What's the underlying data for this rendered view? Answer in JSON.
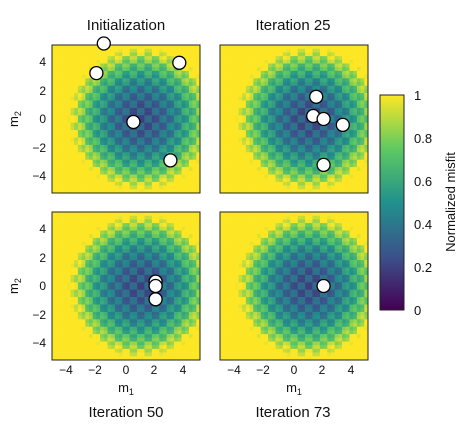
{
  "chart_data": [
    {
      "type": "heatmap",
      "title": "Initialization",
      "xlabel": "",
      "ylabel": "m2",
      "xlim": [
        -5,
        5
      ],
      "ylim": [
        -5,
        5
      ],
      "xticks": [],
      "yticks": [
        "4",
        "2",
        "0",
        "−2",
        "−4"
      ],
      "points": [
        {
          "x": -1.5,
          "y": 5.1
        },
        {
          "x": -2.0,
          "y": 3.1
        },
        {
          "x": 3.6,
          "y": 3.8
        },
        {
          "x": 0.5,
          "y": -0.2
        },
        {
          "x": 3.0,
          "y": -2.8
        }
      ]
    },
    {
      "type": "heatmap",
      "title": "Iteration 25",
      "xlabel": "",
      "ylabel": "",
      "xlim": [
        -5,
        5
      ],
      "ylim": [
        -5,
        5
      ],
      "xticks": [],
      "yticks": [],
      "points": [
        {
          "x": 1.5,
          "y": 1.5
        },
        {
          "x": 1.3,
          "y": 0.2
        },
        {
          "x": 2.0,
          "y": 0.0
        },
        {
          "x": 3.3,
          "y": -0.4
        },
        {
          "x": 2.0,
          "y": -3.1
        }
      ]
    },
    {
      "type": "heatmap",
      "title": "Iteration 50",
      "xlabel": "m1",
      "ylabel": "m2",
      "xlim": [
        -5,
        5
      ],
      "ylim": [
        -5,
        5
      ],
      "xticks": [
        "−4",
        "−2",
        "0",
        "2",
        "4"
      ],
      "yticks": [
        "4",
        "2",
        "0",
        "−2",
        "−4"
      ],
      "points": [
        {
          "x": 2.0,
          "y": 0.3
        },
        {
          "x": 2.0,
          "y": 0.0
        },
        {
          "x": 2.0,
          "y": -0.9
        }
      ]
    },
    {
      "type": "heatmap",
      "title": "Iteration 73",
      "xlabel": "m1",
      "ylabel": "",
      "xlim": [
        -5,
        5
      ],
      "ylim": [
        -5,
        5
      ],
      "xticks": [
        "−4",
        "−2",
        "0",
        "2",
        "4"
      ],
      "yticks": [],
      "points": [
        {
          "x": 2.0,
          "y": 0.0
        }
      ]
    }
  ],
  "colorbar": {
    "label": "Normalized misfit",
    "ticks": [
      "0",
      "0.2",
      "0.4",
      "0.6",
      "0.8",
      "1"
    ],
    "range": [
      0,
      1
    ],
    "colormap": [
      "#440154",
      "#3b528b",
      "#21918c",
      "#5ec962",
      "#fde725"
    ]
  },
  "colors": {
    "marker_fill": "#ffffff",
    "marker_edge": "#000000"
  }
}
